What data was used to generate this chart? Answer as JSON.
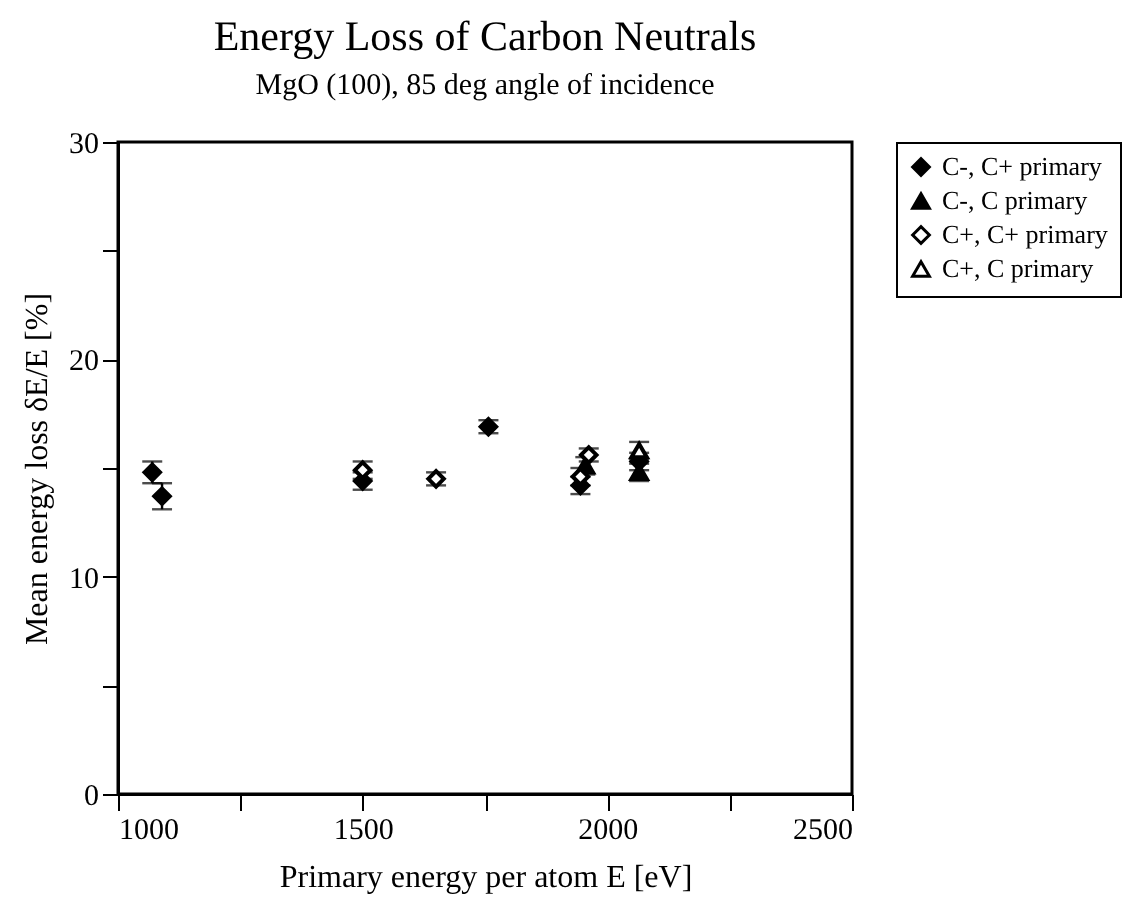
{
  "chart_data": {
    "type": "scatter",
    "title": "Energy Loss of Carbon Neutrals",
    "subtitle": "MgO (100), 85 deg angle of incidence",
    "xlabel": "Primary energy per atom   E [eV]",
    "ylabel": "Mean energy loss  δE/E  [%]",
    "xlim": [
      1000,
      2500
    ],
    "xticks": [
      1000,
      {
        "value": 1250,
        "label": null
      },
      1500,
      {
        "value": 1750,
        "label": null
      },
      2000,
      {
        "value": 2250,
        "label": null
      },
      2500
    ],
    "ylim": [
      0,
      30
    ],
    "yticks": [
      0,
      {
        "value": 5,
        "label": null
      },
      10,
      {
        "value": 15,
        "label": null
      },
      20,
      {
        "value": 25,
        "label": null
      },
      30
    ],
    "grid": false,
    "legend": "top right",
    "series": [
      {
        "name": "C-, C+ primary",
        "color": "#000000",
        "marker": "diamond",
        "x": [
          1070,
          1090,
          1500,
          1757,
          1945,
          2065
        ],
        "values": [
          14.8,
          13.7,
          14.4,
          16.9,
          14.2,
          15.3
        ],
        "errors": [
          0.5,
          0.6,
          0.4,
          0.3,
          0.4,
          0.4
        ]
      },
      {
        "name": "C-, C primary",
        "color": "#000000",
        "marker": "triangle",
        "x": [
          1955,
          2065
        ],
        "values": [
          15.1,
          14.8
        ],
        "errors": [
          0.4,
          0.4
        ]
      },
      {
        "name": "C+, C+ primary",
        "color": "#000000",
        "marker": "diamond-open",
        "x": [
          1500,
          1650,
          1945,
          1962
        ],
        "values": [
          14.9,
          14.5,
          14.6,
          15.6
        ],
        "errors": [
          0.4,
          0.3,
          0.4,
          0.3
        ]
      },
      {
        "name": "C+, C primary",
        "color": "#000000",
        "marker": "triangle-open",
        "x": [
          2065
        ],
        "values": [
          15.8
        ],
        "errors": [
          0.4
        ]
      }
    ]
  }
}
